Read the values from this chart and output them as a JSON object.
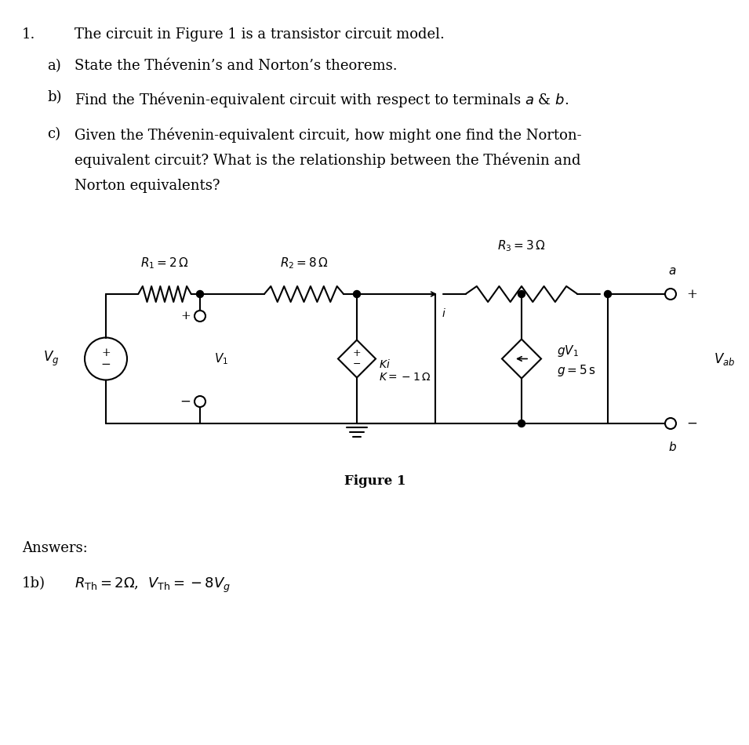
{
  "bg_color": "#ffffff",
  "text_color": "#000000",
  "line_color": "#000000",
  "title": "1.",
  "q_main": "The circuit in Figure 1 is a transistor circuit model.",
  "q_a": "a)",
  "q_a_text": "State the Thévenin’s and Norton’s theorems.",
  "q_b": "b)",
  "q_b_text": "Find the Thévenin-equivalent circuit with respect to terminals $a$ & $b$.",
  "q_c": "c)",
  "q_c_text1": "Given the Thévenin-equivalent circuit, how might one find the Norton-",
  "q_c_text2": "equivalent circuit? What is the relationship between the Thévenin and",
  "q_c_text3": "Norton equivalents?",
  "answers_label": "Answers:",
  "ans_1b": "1b)",
  "ans_1b_text": "$R_{\\mathrm{Th}} = 2\\Omega$,  $V_{\\mathrm{Th}} = -8V_g$",
  "figure_label": "Figure 1",
  "fig_width": 9.55,
  "fig_height": 9.5
}
